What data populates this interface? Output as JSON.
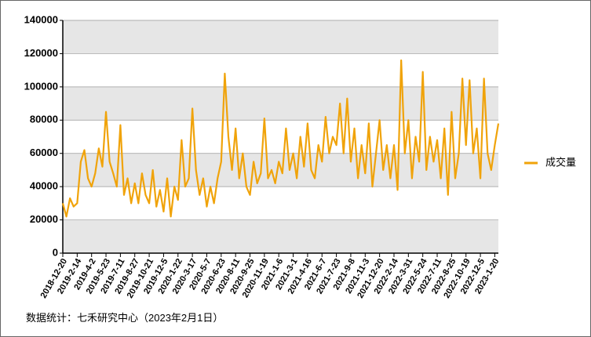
{
  "chart_data": {
    "type": "line",
    "source_note": "数据统计：七禾研究中心（2023年2月1日）",
    "categories": [
      "2018-12-20",
      null,
      null,
      null,
      "2019-2-14",
      null,
      null,
      null,
      "2019-4-2",
      null,
      null,
      null,
      "2019-5-23",
      null,
      null,
      null,
      "2019-7-11",
      null,
      null,
      null,
      "2019-8-27",
      null,
      null,
      null,
      "2019-10-21",
      null,
      null,
      null,
      "2019-12-5",
      null,
      null,
      null,
      "2020-1-22",
      null,
      null,
      null,
      "2020-3-17",
      null,
      null,
      null,
      "2020-5-7",
      null,
      null,
      null,
      "2020-6-23",
      null,
      null,
      null,
      "2020-8-11",
      null,
      null,
      null,
      "2020-9-25",
      null,
      null,
      null,
      "2020-11-19",
      null,
      null,
      null,
      "2021-1-6",
      null,
      null,
      null,
      "2021-3-1",
      null,
      null,
      null,
      "2021-4-16",
      null,
      null,
      null,
      "2021-6-7",
      null,
      null,
      null,
      "2021-7-23",
      null,
      null,
      null,
      "2021-9-8",
      null,
      null,
      null,
      "2021-11-3",
      null,
      null,
      null,
      "2021-12-20",
      null,
      null,
      null,
      "2022-2-14",
      null,
      null,
      null,
      "2022-3-31",
      null,
      null,
      null,
      "2022-5-24",
      null,
      null,
      null,
      "2022-7-11",
      null,
      null,
      null,
      "2022-8-25",
      null,
      null,
      null,
      "2022-10-19",
      null,
      null,
      null,
      "2022-12-5",
      null,
      null,
      null,
      "2023-1-20",
      null
    ],
    "series": [
      {
        "name": "成交量",
        "color": "#f0a30a",
        "values": [
          30000,
          22000,
          33000,
          28000,
          30000,
          55000,
          62000,
          45000,
          40000,
          48000,
          63000,
          52000,
          85000,
          55000,
          48000,
          40000,
          77000,
          35000,
          45000,
          30000,
          42000,
          30000,
          48000,
          35000,
          30000,
          50000,
          28000,
          38000,
          25000,
          45000,
          22000,
          40000,
          32000,
          68000,
          40000,
          45000,
          87000,
          50000,
          35000,
          45000,
          28000,
          40000,
          30000,
          45000,
          55000,
          108000,
          70000,
          50000,
          75000,
          45000,
          60000,
          40000,
          35000,
          55000,
          42000,
          48000,
          81000,
          45000,
          50000,
          42000,
          55000,
          48000,
          75000,
          50000,
          60000,
          45000,
          70000,
          52000,
          78000,
          50000,
          45000,
          65000,
          55000,
          82000,
          60000,
          70000,
          65000,
          90000,
          60000,
          93000,
          55000,
          75000,
          45000,
          65000,
          48000,
          78000,
          40000,
          60000,
          80000,
          50000,
          65000,
          45000,
          65000,
          38000,
          116000,
          60000,
          80000,
          45000,
          70000,
          55000,
          109000,
          50000,
          70000,
          55000,
          68000,
          45000,
          75000,
          35000,
          85000,
          45000,
          60000,
          105000,
          65000,
          104000,
          60000,
          75000,
          45000,
          105000,
          60000,
          50000,
          65000,
          78000
        ]
      }
    ],
    "ylim": [
      0,
      140000
    ],
    "yticks": [
      0,
      20000,
      40000,
      60000,
      80000,
      100000,
      120000,
      140000
    ],
    "grid": true,
    "legend": "right"
  }
}
